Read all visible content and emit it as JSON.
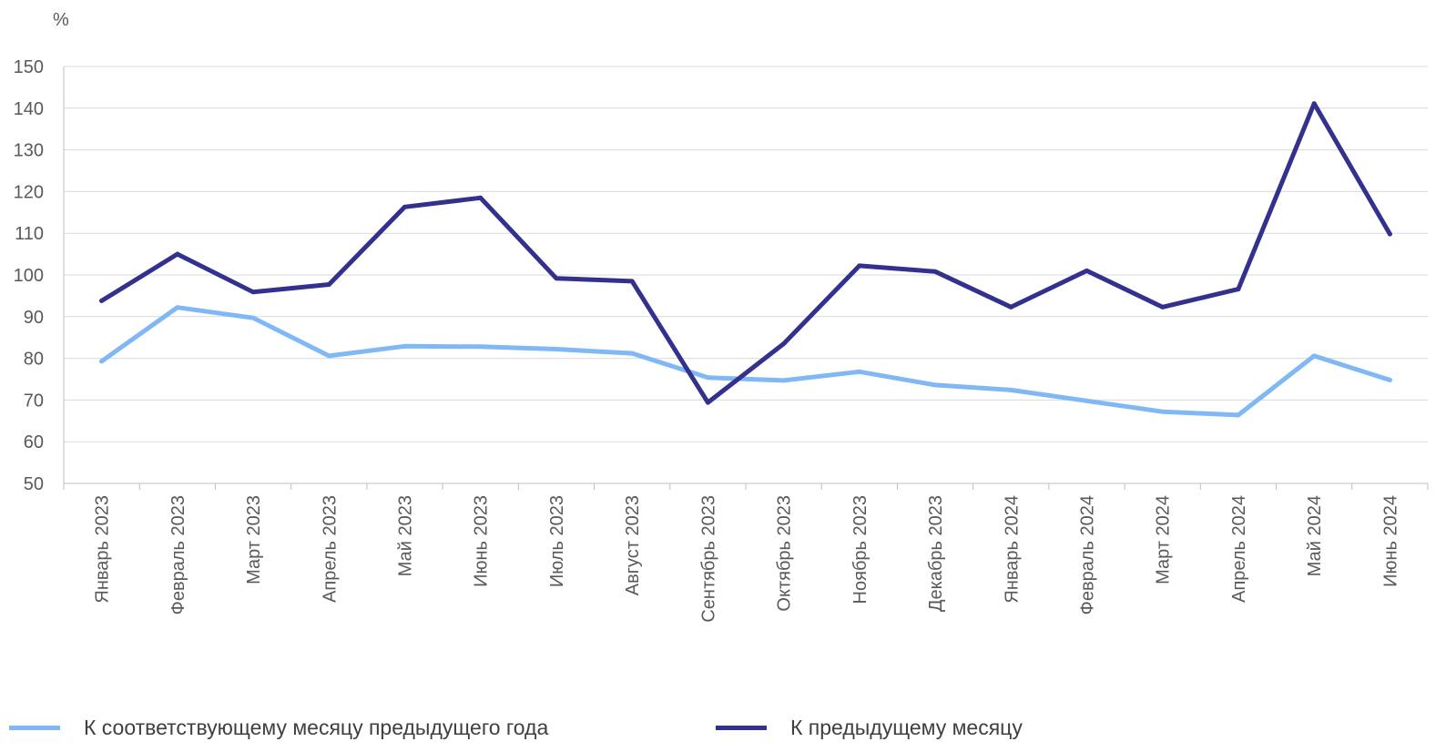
{
  "chart_data": {
    "type": "line",
    "y_unit": "%",
    "ylim": [
      50,
      150
    ],
    "yticks": [
      50,
      60,
      70,
      80,
      90,
      100,
      110,
      120,
      130,
      140,
      150
    ],
    "grid": true,
    "legend_position": "bottom",
    "categories": [
      "Январь 2023",
      "Февраль 2023",
      "Март 2023",
      "Апрель 2023",
      "Май 2023",
      "Июнь 2023",
      "Июль 2023",
      "Август 2023",
      "Сентябрь 2023",
      "Октябрь 2023",
      "Ноябрь 2023",
      "Декабрь 2023",
      "Январь 2024",
      "Февраль 2024",
      "Март 2024",
      "Апрель 2024",
      "Май 2024",
      "Июнь 2024"
    ],
    "series": [
      {
        "name": "К соответствующему месяцу предыдущего года",
        "color": "#7fb8f5",
        "values": [
          79.3,
          92.2,
          89.7,
          80.6,
          82.9,
          82.8,
          82.2,
          81.2,
          75.4,
          74.7,
          76.8,
          73.6,
          72.4,
          69.8,
          67.2,
          66.4,
          80.6,
          74.8
        ]
      },
      {
        "name": "К предыдущему месяцу",
        "color": "#33308e",
        "values": [
          93.8,
          105.0,
          95.9,
          97.7,
          116.3,
          118.5,
          99.2,
          98.5,
          69.4,
          83.5,
          102.2,
          100.8,
          92.3,
          101.0,
          92.3,
          96.6,
          141.1,
          109.8
        ]
      }
    ]
  }
}
